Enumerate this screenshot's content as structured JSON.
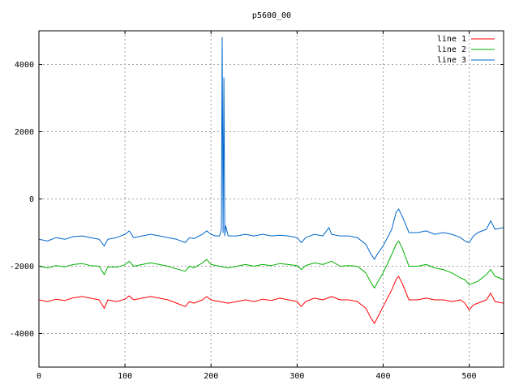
{
  "chart_data": {
    "type": "line",
    "title": "p5600_00",
    "xlabel": "",
    "ylabel": "",
    "xlim": [
      0,
      540
    ],
    "ylim": [
      -5000,
      5000
    ],
    "xticks": [
      0,
      100,
      200,
      300,
      400,
      500
    ],
    "yticks": [
      -4000,
      -2000,
      0,
      2000,
      4000
    ],
    "xtick_labels": [
      "0",
      "100",
      "200",
      "300",
      "400",
      "500"
    ],
    "ytick_labels": [
      "-4000",
      "-2000",
      "0",
      "2000",
      "4000"
    ],
    "grid": true,
    "legend_position": "top-right",
    "series": [
      {
        "name": "line 1",
        "color": "#ff0000",
        "points": [
          [
            0,
            -3000
          ],
          [
            10,
            -3050
          ],
          [
            20,
            -2980
          ],
          [
            30,
            -3020
          ],
          [
            40,
            -2940
          ],
          [
            50,
            -2900
          ],
          [
            60,
            -2950
          ],
          [
            70,
            -3000
          ],
          [
            76,
            -3250
          ],
          [
            80,
            -3000
          ],
          [
            90,
            -3050
          ],
          [
            100,
            -2980
          ],
          [
            105,
            -2880
          ],
          [
            110,
            -3000
          ],
          [
            120,
            -2950
          ],
          [
            130,
            -2900
          ],
          [
            140,
            -2950
          ],
          [
            150,
            -3000
          ],
          [
            160,
            -3100
          ],
          [
            170,
            -3200
          ],
          [
            175,
            -3050
          ],
          [
            180,
            -3100
          ],
          [
            190,
            -3000
          ],
          [
            195,
            -2900
          ],
          [
            200,
            -3000
          ],
          [
            210,
            -3050
          ],
          [
            220,
            -3100
          ],
          [
            230,
            -3050
          ],
          [
            240,
            -3000
          ],
          [
            250,
            -3050
          ],
          [
            260,
            -2980
          ],
          [
            270,
            -3020
          ],
          [
            280,
            -2950
          ],
          [
            290,
            -3000
          ],
          [
            300,
            -3050
          ],
          [
            305,
            -3200
          ],
          [
            310,
            -3050
          ],
          [
            320,
            -2950
          ],
          [
            330,
            -3000
          ],
          [
            340,
            -2900
          ],
          [
            350,
            -3000
          ],
          [
            360,
            -3000
          ],
          [
            370,
            -3050
          ],
          [
            380,
            -3250
          ],
          [
            385,
            -3500
          ],
          [
            390,
            -3700
          ],
          [
            393,
            -3550
          ],
          [
            400,
            -3200
          ],
          [
            410,
            -2700
          ],
          [
            415,
            -2400
          ],
          [
            418,
            -2300
          ],
          [
            422,
            -2500
          ],
          [
            430,
            -3000
          ],
          [
            440,
            -3000
          ],
          [
            450,
            -2950
          ],
          [
            460,
            -3000
          ],
          [
            470,
            -3000
          ],
          [
            480,
            -3050
          ],
          [
            490,
            -3000
          ],
          [
            495,
            -3100
          ],
          [
            500,
            -3300
          ],
          [
            505,
            -3150
          ],
          [
            510,
            -3100
          ],
          [
            520,
            -3000
          ],
          [
            525,
            -2800
          ],
          [
            530,
            -3050
          ],
          [
            540,
            -3100
          ]
        ]
      },
      {
        "name": "line 2",
        "color": "#00b000",
        "points": [
          [
            0,
            -2000
          ],
          [
            10,
            -2050
          ],
          [
            20,
            -1980
          ],
          [
            30,
            -2020
          ],
          [
            40,
            -1950
          ],
          [
            50,
            -1920
          ],
          [
            60,
            -1980
          ],
          [
            70,
            -2000
          ],
          [
            76,
            -2250
          ],
          [
            80,
            -2020
          ],
          [
            90,
            -2030
          ],
          [
            100,
            -1960
          ],
          [
            105,
            -1850
          ],
          [
            110,
            -2000
          ],
          [
            120,
            -1950
          ],
          [
            130,
            -1900
          ],
          [
            140,
            -1950
          ],
          [
            150,
            -2000
          ],
          [
            160,
            -2080
          ],
          [
            170,
            -2150
          ],
          [
            175,
            -2000
          ],
          [
            180,
            -2050
          ],
          [
            190,
            -1900
          ],
          [
            195,
            -1800
          ],
          [
            200,
            -1950
          ],
          [
            210,
            -2000
          ],
          [
            220,
            -2050
          ],
          [
            230,
            -2000
          ],
          [
            240,
            -1950
          ],
          [
            250,
            -2000
          ],
          [
            260,
            -1950
          ],
          [
            270,
            -1980
          ],
          [
            280,
            -1920
          ],
          [
            290,
            -1950
          ],
          [
            300,
            -1980
          ],
          [
            305,
            -2100
          ],
          [
            310,
            -1980
          ],
          [
            320,
            -1900
          ],
          [
            330,
            -1950
          ],
          [
            340,
            -1850
          ],
          [
            350,
            -2000
          ],
          [
            360,
            -1980
          ],
          [
            370,
            -2000
          ],
          [
            380,
            -2200
          ],
          [
            385,
            -2450
          ],
          [
            390,
            -2650
          ],
          [
            393,
            -2500
          ],
          [
            400,
            -2200
          ],
          [
            410,
            -1650
          ],
          [
            415,
            -1350
          ],
          [
            418,
            -1250
          ],
          [
            422,
            -1450
          ],
          [
            430,
            -2000
          ],
          [
            440,
            -2000
          ],
          [
            450,
            -1950
          ],
          [
            460,
            -2050
          ],
          [
            470,
            -2100
          ],
          [
            480,
            -2200
          ],
          [
            490,
            -2350
          ],
          [
            495,
            -2400
          ],
          [
            500,
            -2550
          ],
          [
            505,
            -2500
          ],
          [
            510,
            -2450
          ],
          [
            520,
            -2250
          ],
          [
            525,
            -2100
          ],
          [
            530,
            -2300
          ],
          [
            540,
            -2400
          ]
        ]
      },
      {
        "name": "line 3",
        "color": "#0066cc",
        "points": [
          [
            0,
            -1200
          ],
          [
            10,
            -1250
          ],
          [
            20,
            -1150
          ],
          [
            30,
            -1200
          ],
          [
            40,
            -1120
          ],
          [
            50,
            -1100
          ],
          [
            60,
            -1150
          ],
          [
            70,
            -1200
          ],
          [
            76,
            -1400
          ],
          [
            80,
            -1200
          ],
          [
            90,
            -1150
          ],
          [
            100,
            -1050
          ],
          [
            105,
            -950
          ],
          [
            110,
            -1150
          ],
          [
            120,
            -1100
          ],
          [
            130,
            -1050
          ],
          [
            140,
            -1100
          ],
          [
            150,
            -1150
          ],
          [
            160,
            -1200
          ],
          [
            170,
            -1300
          ],
          [
            175,
            -1150
          ],
          [
            180,
            -1180
          ],
          [
            190,
            -1050
          ],
          [
            195,
            -950
          ],
          [
            200,
            -1050
          ],
          [
            205,
            -1100
          ],
          [
            210,
            -1100
          ],
          [
            212,
            -900
          ],
          [
            213,
            4800
          ],
          [
            214,
            -1000
          ],
          [
            215,
            3600
          ],
          [
            216,
            -1100
          ],
          [
            217,
            -800
          ],
          [
            220,
            -1100
          ],
          [
            230,
            -1100
          ],
          [
            240,
            -1050
          ],
          [
            250,
            -1100
          ],
          [
            260,
            -1050
          ],
          [
            270,
            -1100
          ],
          [
            280,
            -1080
          ],
          [
            290,
            -1100
          ],
          [
            300,
            -1150
          ],
          [
            305,
            -1300
          ],
          [
            310,
            -1150
          ],
          [
            320,
            -1050
          ],
          [
            330,
            -1100
          ],
          [
            337,
            -850
          ],
          [
            340,
            -1050
          ],
          [
            350,
            -1100
          ],
          [
            360,
            -1100
          ],
          [
            370,
            -1150
          ],
          [
            380,
            -1350
          ],
          [
            385,
            -1600
          ],
          [
            390,
            -1800
          ],
          [
            393,
            -1650
          ],
          [
            400,
            -1400
          ],
          [
            410,
            -900
          ],
          [
            415,
            -400
          ],
          [
            418,
            -300
          ],
          [
            422,
            -500
          ],
          [
            430,
            -1000
          ],
          [
            440,
            -1000
          ],
          [
            450,
            -950
          ],
          [
            460,
            -1050
          ],
          [
            470,
            -1000
          ],
          [
            480,
            -1050
          ],
          [
            490,
            -1150
          ],
          [
            495,
            -1250
          ],
          [
            500,
            -1300
          ],
          [
            505,
            -1100
          ],
          [
            510,
            -1000
          ],
          [
            520,
            -900
          ],
          [
            525,
            -650
          ],
          [
            530,
            -900
          ],
          [
            540,
            -850
          ]
        ]
      }
    ]
  }
}
